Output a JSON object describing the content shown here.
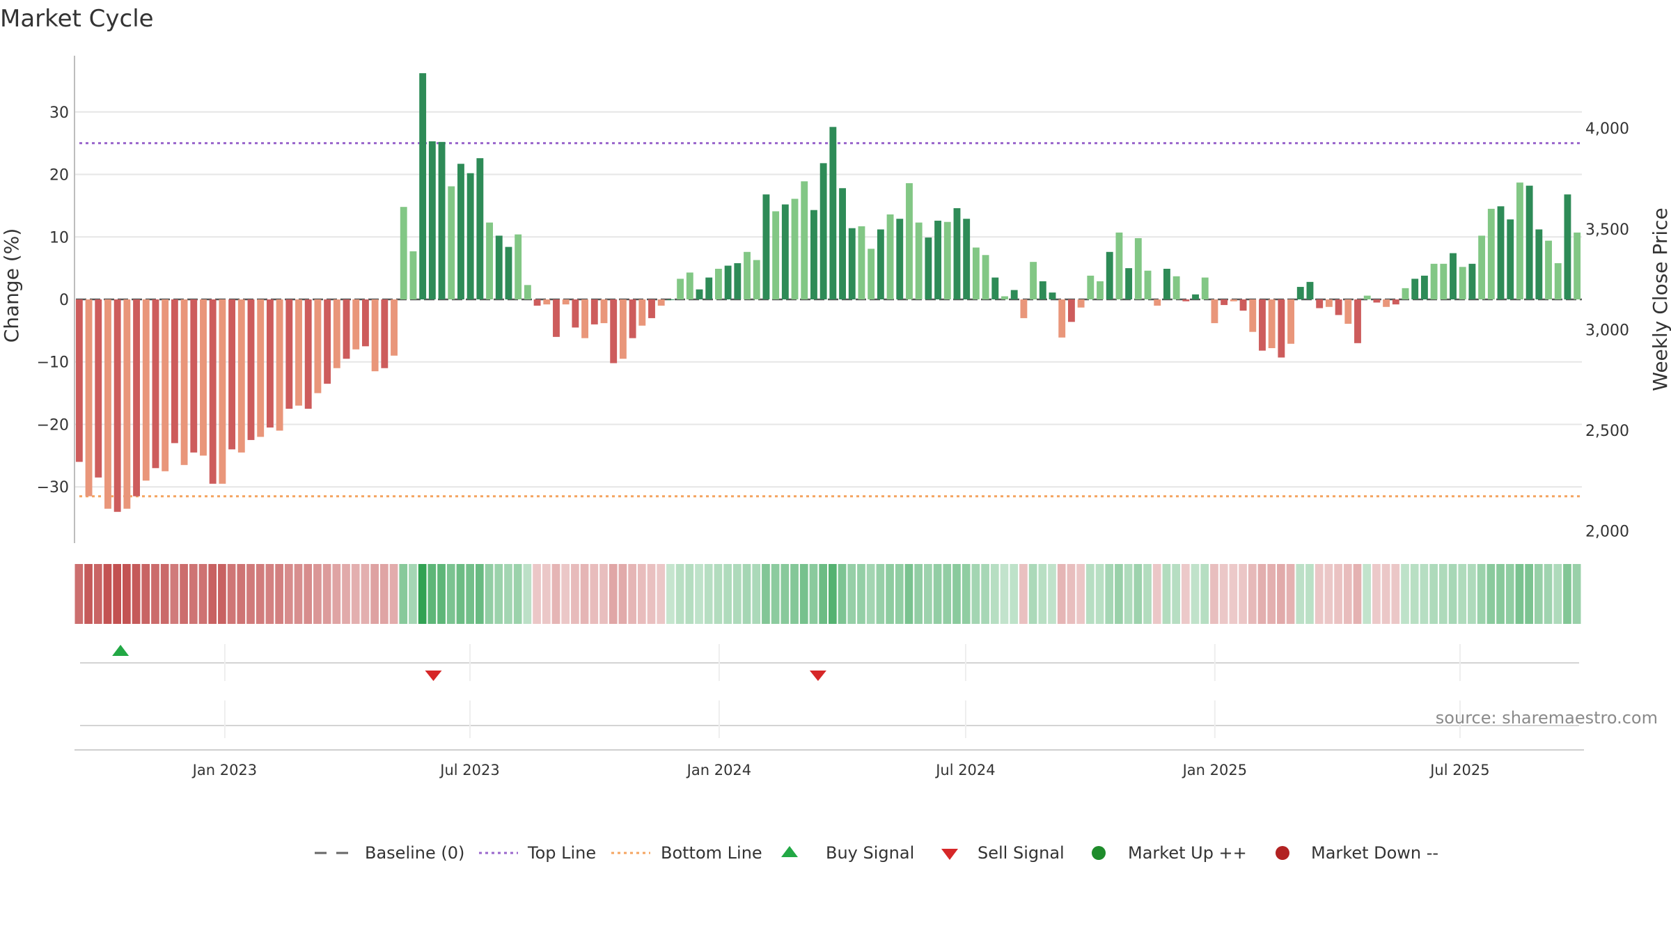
{
  "chart_data": {
    "type": "bar",
    "title": "Market Cycle",
    "ylabel": "Change (%)",
    "y2label": "Weekly Close Price",
    "ylim": [
      -39,
      39
    ],
    "y2lim": [
      1940,
      4360
    ],
    "yticks": [
      -30,
      -20,
      -10,
      0,
      10,
      20,
      30
    ],
    "y2ticks": [
      2000,
      2500,
      3000,
      3500,
      4000
    ],
    "y2tick_labels": [
      "2,000",
      "2,500",
      "3,000",
      "3,500",
      "4,000"
    ],
    "x_start": "2022-09-12",
    "x_end": "2025-09-29",
    "x_tick_labels": [
      {
        "date": "2023-01-01",
        "label": "Jan 2023"
      },
      {
        "date": "2023-07-01",
        "label": "Jul 2023"
      },
      {
        "date": "2024-01-01",
        "label": "Jan 2024"
      },
      {
        "date": "2024-07-01",
        "label": "Jul 2024"
      },
      {
        "date": "2025-01-01",
        "label": "Jan 2025"
      },
      {
        "date": "2025-07-01",
        "label": "Jul 2025"
      }
    ],
    "top_line": 25,
    "bottom_line": -31.5,
    "grid": true,
    "values": [
      -26,
      -31.5,
      -28.5,
      -33.5,
      -34,
      -33.5,
      -31.5,
      -29,
      -27,
      -27.5,
      -23,
      -26.5,
      -24.5,
      -25,
      -29.5,
      -29.5,
      -24,
      -24.5,
      -22.5,
      -22,
      -20.5,
      -21,
      -17.5,
      -17,
      -17.5,
      -15,
      -13.5,
      -11,
      -9.5,
      -8,
      -7.5,
      -11.5,
      -11,
      -9,
      14.8,
      7.7,
      36.2,
      25.3,
      25.2,
      18.1,
      21.7,
      20.2,
      22.6,
      12.3,
      10.2,
      8.4,
      10.4,
      2.3,
      -1,
      -0.8,
      -6,
      -0.8,
      -4.5,
      -6.2,
      -4,
      -3.8,
      -10.2,
      -9.5,
      -6.2,
      -4.2,
      -3,
      -1,
      0,
      3.3,
      4.3,
      1.6,
      3.5,
      4.9,
      5.4,
      5.8,
      7.6,
      6.3,
      16.8,
      14.1,
      15.2,
      16.1,
      18.9,
      14.3,
      21.8,
      27.6,
      17.8,
      11.4,
      11.7,
      8.1,
      11.2,
      13.6,
      12.9,
      18.6,
      12.3,
      9.9,
      12.6,
      12.4,
      14.6,
      12.9,
      8.3,
      7.1,
      3.5,
      0.5,
      1.5,
      -3,
      6,
      2.9,
      1.1,
      -6.1,
      -3.6,
      -1.3,
      3.8,
      2.9,
      7.6,
      10.7,
      5,
      9.8,
      4.6,
      -1,
      4.9,
      3.7,
      -0.3,
      0.8,
      3.5,
      -3.8,
      -0.9,
      -0.3,
      -1.8,
      -5.2,
      -8.2,
      -7.8,
      -9.3,
      -7.1,
      2,
      2.8,
      -1.4,
      -1.2,
      -2.5,
      -3.9,
      -7,
      0.6,
      -0.5,
      -1.2,
      -0.8,
      1.8,
      3.3,
      3.8,
      5.7,
      5.7,
      7.4,
      5.2,
      5.7,
      10.2,
      14.5,
      14.9,
      12.8,
      18.7,
      18.2,
      11.2,
      9.4,
      5.8,
      16.8,
      10.7
    ],
    "price": {
      "name": "Weekly Close Price"
    },
    "signals": [
      {
        "type": "buy",
        "date": "2022-10-16"
      },
      {
        "type": "sell",
        "date": "2023-06-04"
      },
      {
        "type": "sell",
        "date": "2024-03-14"
      }
    ]
  },
  "source_text": "source: sharemaestro.com",
  "legend": {
    "baseline": "Baseline (0)",
    "top_line": "Top Line",
    "bottom_line": "Bottom Line",
    "buy_signal": "Buy Signal",
    "sell_signal": "Sell Signal",
    "market_up": "Market Up ++",
    "market_down": "Market Down --"
  },
  "colors": {
    "dark_green": "#2e8b57",
    "light_green": "#82c785",
    "dark_red": "#cd5c5c",
    "light_red": "#e9967a",
    "top_line": "#9966cc",
    "bottom_line": "#f4a460",
    "buy": "#22a845",
    "sell": "#d62728",
    "market_up": "#1e8c2b",
    "market_down": "#b22222",
    "grid": "#e6e6e6",
    "axis": "#bdbdbd"
  }
}
